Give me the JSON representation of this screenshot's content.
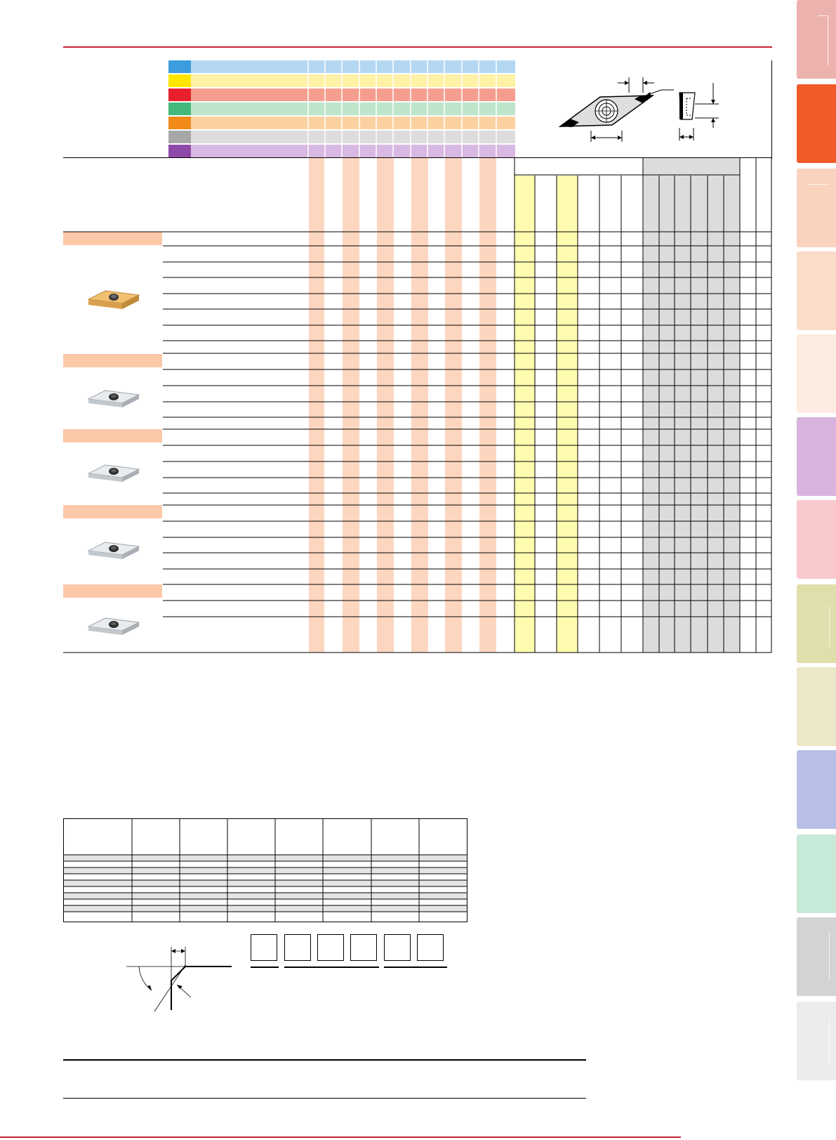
{
  "colors": {
    "accent_red": "#c8202e",
    "iso_swatches": [
      "#3b9ddd",
      "#ffe600",
      "#e8202e",
      "#42b87a",
      "#f28a18",
      "#a7a7a7",
      "#8e4aa8"
    ],
    "iso_bands": [
      "#b5d8f2",
      "#fff2a6",
      "#f59e8f",
      "#bde5ca",
      "#fcd1a2",
      "#dcdcdc",
      "#d8b9e2"
    ],
    "side_tabs": [
      "#ecb2ae",
      "#f15a29",
      "#fad3bf",
      "#fbdcc8",
      "#fcebe0",
      "#d7b3de",
      "#f9c9cd",
      "#e0deaa",
      "#ebe7c7",
      "#b8bfe6",
      "#c7e9d7",
      "#d3d3d3",
      "#ececec"
    ],
    "grade_stripe": "#fdd6c0",
    "yellow_stripe": "#fffcb0",
    "gray_block": "#dcdcdc",
    "category_bar": "#fbc8a8"
  },
  "icons": {
    "insert_gold": "insert-gold-icon",
    "insert_silver": "insert-silver-icon",
    "dimension_diagram": "insert-dimension-diagram",
    "corner_diagram": "corner-chamfer-diagram"
  },
  "categories": [
    {
      "key": "cat-1",
      "insert": "gold"
    },
    {
      "key": "cat-2",
      "insert": "silver"
    },
    {
      "key": "cat-3",
      "insert": "silver"
    },
    {
      "key": "cat-4",
      "insert": "silver"
    },
    {
      "key": "cat-5",
      "insert": "silver"
    }
  ],
  "code_boxes": 6
}
